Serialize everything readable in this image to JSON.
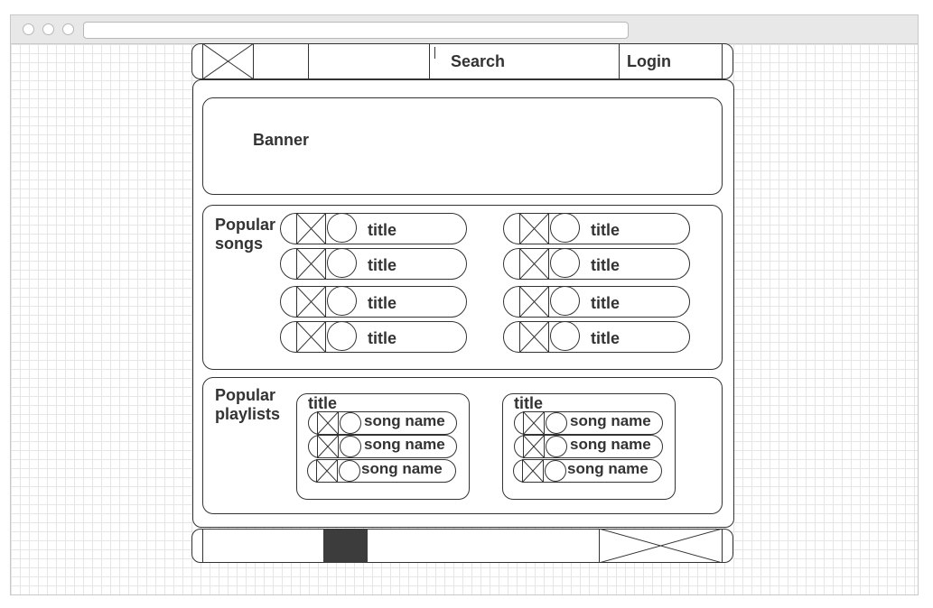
{
  "nav": {
    "search_label": "Search",
    "login_label": "Login"
  },
  "banner": {
    "label": "Banner"
  },
  "popular_songs": {
    "heading_line1": "Popular",
    "heading_line2": "songs",
    "items": [
      {
        "title": "title"
      },
      {
        "title": "title"
      },
      {
        "title": "title"
      },
      {
        "title": "title"
      },
      {
        "title": "title"
      },
      {
        "title": "title"
      },
      {
        "title": "title"
      },
      {
        "title": "title"
      }
    ]
  },
  "popular_playlists": {
    "heading_line1": "Popular",
    "heading_line2": "playlists",
    "playlists": [
      {
        "title": "title",
        "songs": [
          {
            "name": "song name"
          },
          {
            "name": "song name"
          },
          {
            "name": "song name"
          }
        ]
      },
      {
        "title": "title",
        "songs": [
          {
            "name": "song name"
          },
          {
            "name": "song name"
          },
          {
            "name": "song name"
          }
        ]
      }
    ]
  }
}
